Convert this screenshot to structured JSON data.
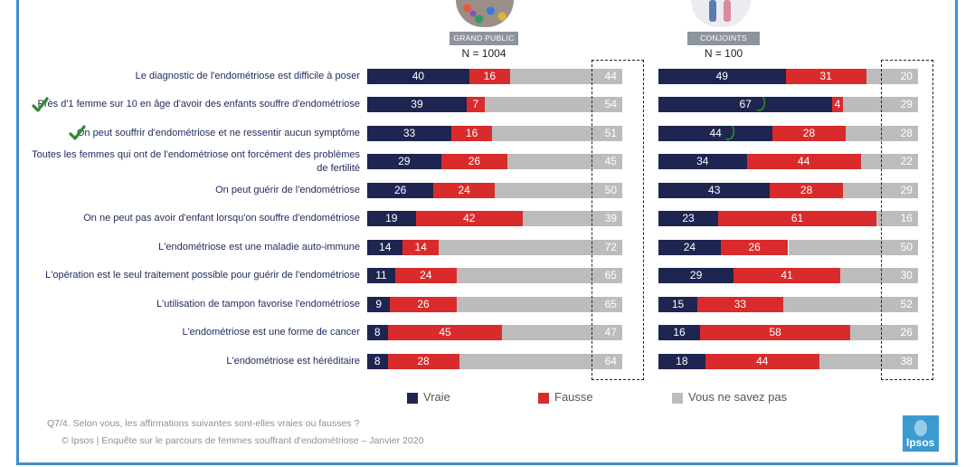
{
  "groups": [
    {
      "badge": "GRAND PUBLIC",
      "n": "N = 1004"
    },
    {
      "badge": "CONJOINTS",
      "n": "N = 100"
    }
  ],
  "colors": {
    "vrai": "#1e2550",
    "fausse": "#d92b2b",
    "nsp": "#bcbcbc"
  },
  "rows": [
    {
      "label": "Le diagnostic de l'endométriose est difficile à poser",
      "checked": false
    },
    {
      "label": "Près d'1 femme sur 10 en âge d'avoir des enfants souffre d'endométriose",
      "checked": true
    },
    {
      "label": "On peut souffrir d'endométriose et ne ressentir aucun symptôme",
      "checked": true
    },
    {
      "label": "Toutes les femmes qui ont de l'endométriose ont forcément des problèmes de fertilité",
      "label_lines": [
        "Toutes les femmes qui ont de l'endométriose ont forcément des problèmes",
        "de fertilité"
      ],
      "checked": false
    },
    {
      "label": "On peut guérir de l'endométriose",
      "checked": false
    },
    {
      "label": "On ne peut pas avoir d'enfant lorsqu'on souffre d'endométriose",
      "checked": false
    },
    {
      "label": "L'endométriose est une maladie auto-immune",
      "checked": false
    },
    {
      "label": "L'opération est le seul traitement possible pour guérir de l'endométriose",
      "checked": false
    },
    {
      "label": "L'utilisation de tampon favorise l'endométriose",
      "checked": false
    },
    {
      "label": "L'endométriose est une forme de cancer",
      "checked": false
    },
    {
      "label": "L'endométriose est héréditaire",
      "checked": false
    }
  ],
  "chart_data": [
    {
      "type": "bar",
      "stacked": true,
      "orientation": "horizontal",
      "group": "GRAND PUBLIC",
      "categories": [
        "Le diagnostic de l'endométriose est difficile à poser",
        "Près d'1 femme sur 10 en âge d'avoir des enfants souffre d'endométriose",
        "On peut souffrir d'endométriose et ne ressentir aucun symptôme",
        "Toutes les femmes qui ont de l'endométriose ont forcément des problèmes de fertilité",
        "On peut guérir de l'endométriose",
        "On ne peut pas avoir d'enfant lorsqu'on souffre d'endométriose",
        "L'endométriose est une maladie auto-immune",
        "L'opération est le seul traitement possible pour guérir de l'endométriose",
        "L'utilisation de tampon favorise l'endométriose",
        "L'endométriose est une forme de cancer",
        "L'endométriose est héréditaire"
      ],
      "series": [
        {
          "name": "Vraie",
          "values": [
            40,
            39,
            33,
            29,
            26,
            19,
            14,
            11,
            9,
            8,
            8
          ]
        },
        {
          "name": "Fausse",
          "values": [
            16,
            7,
            16,
            26,
            24,
            42,
            14,
            24,
            26,
            45,
            28
          ]
        },
        {
          "name": "Vous ne savez pas",
          "values": [
            44,
            54,
            51,
            45,
            50,
            39,
            72,
            65,
            65,
            47,
            64
          ]
        }
      ],
      "xlim": [
        0,
        100
      ],
      "legend": "bottom"
    },
    {
      "type": "bar",
      "stacked": true,
      "orientation": "horizontal",
      "group": "CONJOINTS",
      "categories": [
        "Le diagnostic de l'endométriose est difficile à poser",
        "Près d'1 femme sur 10 en âge d'avoir des enfants souffre d'endométriose",
        "On peut souffrir d'endométriose et ne ressentir aucun symptôme",
        "Toutes les femmes qui ont de l'endométriose ont forcément des problèmes de fertilité",
        "On peut guérir de l'endométriose",
        "On ne peut pas avoir d'enfant lorsqu'on souffre d'endométriose",
        "L'endométriose est une maladie auto-immune",
        "L'opération est le seul traitement possible pour guérir de l'endométriose",
        "L'utilisation de tampon favorise l'endométriose",
        "L'endométriose est une forme de cancer",
        "L'endométriose est héréditaire"
      ],
      "series": [
        {
          "name": "Vraie",
          "values": [
            49,
            67,
            44,
            34,
            43,
            23,
            24,
            29,
            15,
            16,
            18
          ]
        },
        {
          "name": "Fausse",
          "values": [
            31,
            4,
            28,
            44,
            28,
            61,
            26,
            41,
            33,
            58,
            44
          ]
        },
        {
          "name": "Vous ne savez pas",
          "values": [
            20,
            29,
            28,
            22,
            29,
            16,
            50,
            30,
            52,
            26,
            38
          ]
        }
      ],
      "xlim": [
        0,
        100
      ],
      "legend": "bottom"
    }
  ],
  "legend": [
    {
      "label": "Vraie",
      "color": "#1e2550"
    },
    {
      "label": "Fausse",
      "color": "#d92b2b"
    },
    {
      "label": "Vous ne savez pas",
      "color": "#bcbcbc"
    }
  ],
  "footer": {
    "question": "Q7/4. Selon vous, les affirmations suivantes sont-elles vraies ou fausses ?",
    "source": "© Ipsos | Enquête sur le parcours de femmes souffrant d'endométriose – Janvier 2020"
  },
  "logo": {
    "text": "Ipsos"
  }
}
